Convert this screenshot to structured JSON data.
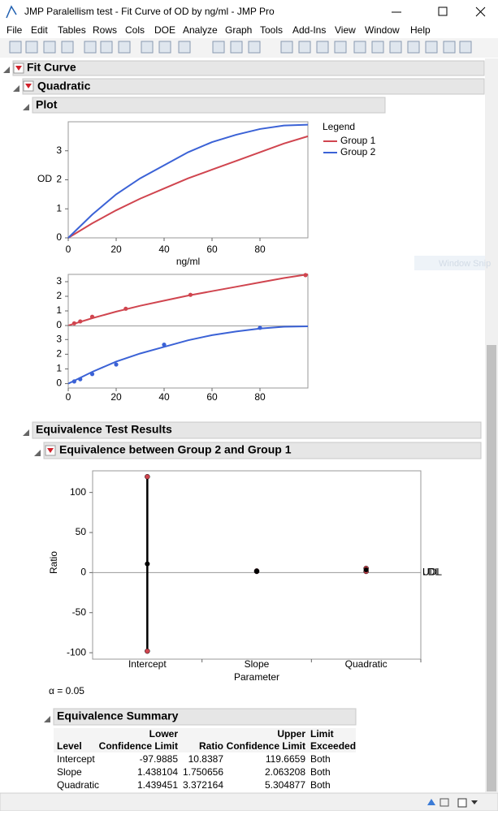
{
  "window": {
    "title": "JMP Paralellism test - Fit Curve of OD by ng/ml - JMP Pro",
    "menu": [
      "File",
      "Edit",
      "Tables",
      "Rows",
      "Cols",
      "DOE",
      "Analyze",
      "Graph",
      "Tools",
      "Add-Ins",
      "View",
      "Window",
      "Help"
    ]
  },
  "outline": {
    "fit_curve": "Fit Curve",
    "quadratic": "Quadratic",
    "plot": "Plot",
    "equivalence_results": "Equivalence Test Results",
    "equivalence_between": "Equivalence between Group 2 and Group 1",
    "summary": "Equivalence Summary"
  },
  "watermark": "Window Snip",
  "chart_data": [
    {
      "type": "line",
      "xlabel": "ng/ml",
      "ylabel": "OD",
      "legend_title": "Legend",
      "x": [
        0,
        10,
        20,
        30,
        40,
        50,
        60,
        70,
        80,
        90,
        100
      ],
      "series": [
        {
          "name": "Group 1",
          "color": "#d0454f",
          "values": [
            0,
            0.5,
            0.95,
            1.35,
            1.7,
            2.05,
            2.35,
            2.65,
            2.95,
            3.25,
            3.5
          ]
        },
        {
          "name": "Group 2",
          "color": "#3b62d6",
          "values": [
            0,
            0.8,
            1.5,
            2.05,
            2.5,
            2.95,
            3.3,
            3.55,
            3.75,
            3.87,
            3.9
          ]
        }
      ],
      "xlim": [
        0,
        100
      ],
      "ylim": [
        0,
        4
      ],
      "xticks": [
        0,
        20,
        40,
        60,
        80
      ],
      "yticks": [
        0,
        1,
        2,
        3
      ]
    },
    {
      "type": "panels",
      "xlim": [
        0,
        100
      ],
      "xticks": [
        0,
        20,
        40,
        60,
        80
      ],
      "panels": [
        {
          "color": "#d0454f",
          "x": [
            2.5,
            5,
            10,
            24,
            51,
            99
          ],
          "values": [
            0.15,
            0.28,
            0.6,
            1.15,
            2.1,
            3.45
          ],
          "ylim": [
            0,
            3.5
          ],
          "yticks": [
            0,
            1,
            2,
            3
          ]
        },
        {
          "color": "#3b62d6",
          "x": [
            2.5,
            5,
            10,
            20,
            40,
            80
          ],
          "values": [
            0.15,
            0.3,
            0.65,
            1.3,
            2.65,
            3.8
          ],
          "ylim": [
            -0.3,
            3.9
          ],
          "yticks": [
            0,
            1,
            2,
            3
          ]
        }
      ]
    },
    {
      "type": "interval",
      "xlabel": "Parameter",
      "ylabel": "Ratio",
      "categories": [
        "Intercept",
        "Slope",
        "Quadratic"
      ],
      "limit_labels": [
        "LDL",
        "UDL"
      ],
      "ylim": [
        -108,
        127
      ],
      "yticks": [
        -100,
        -50,
        0,
        50,
        100
      ]
    }
  ],
  "alpha": "α = 0.05",
  "summary": {
    "columns": [
      {
        "label": "Level"
      },
      {
        "top": "Lower",
        "label": "Confidence Limit"
      },
      {
        "label": "Ratio"
      },
      {
        "top": "Upper",
        "label": "Confidence Limit"
      },
      {
        "top": "Limit",
        "label": "Exceeded"
      }
    ],
    "rows": [
      [
        "Intercept",
        -97.9885,
        10.8387,
        119.6659,
        "Both"
      ],
      [
        "Slope",
        1.438104,
        1.750656,
        2.063208,
        "Both"
      ],
      [
        "Quadratic",
        1.439451,
        3.372164,
        5.304877,
        "Both"
      ]
    ]
  }
}
